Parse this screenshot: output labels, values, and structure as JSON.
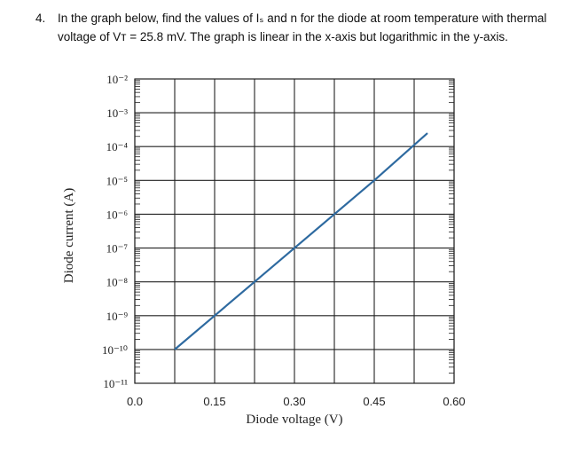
{
  "question": {
    "number": "4.",
    "text": "In the graph below, find the values of Iₛ and n for the diode at room temperature with thermal voltage of Vᴛ = 25.8 mV.  The graph is linear in the x-axis but logarithmic in the y-axis."
  },
  "chart_data": {
    "type": "line",
    "title": "",
    "xlabel": "Diode voltage (V)",
    "ylabel": "Diode current (A)",
    "x_ticks": [
      "0.0",
      "0.15",
      "0.30",
      "0.45",
      "0.60"
    ],
    "x_tick_values": [
      0.0,
      0.15,
      0.3,
      0.45,
      0.6
    ],
    "y_ticks": [
      "10⁻²",
      "10⁻³",
      "10⁻⁴",
      "10⁻⁵",
      "10⁻⁶",
      "10⁻⁷",
      "10⁻⁸",
      "10⁻⁹",
      "10⁻¹⁰",
      "10⁻¹¹"
    ],
    "y_tick_exponents": [
      -2,
      -3,
      -4,
      -5,
      -6,
      -7,
      -8,
      -9,
      -10,
      -11
    ],
    "xlim": [
      0.0,
      0.6
    ],
    "ylim": [
      1e-11,
      0.01
    ],
    "y_scale": "log",
    "grid": true,
    "series_color": "#2e6aa0",
    "series": [
      {
        "x": [
          0.075,
          0.15,
          0.225,
          0.3,
          0.375,
          0.45,
          0.55
        ],
        "y": [
          1e-10,
          1e-09,
          1e-08,
          1e-07,
          1e-06,
          1e-05,
          0.00025
        ]
      }
    ]
  }
}
